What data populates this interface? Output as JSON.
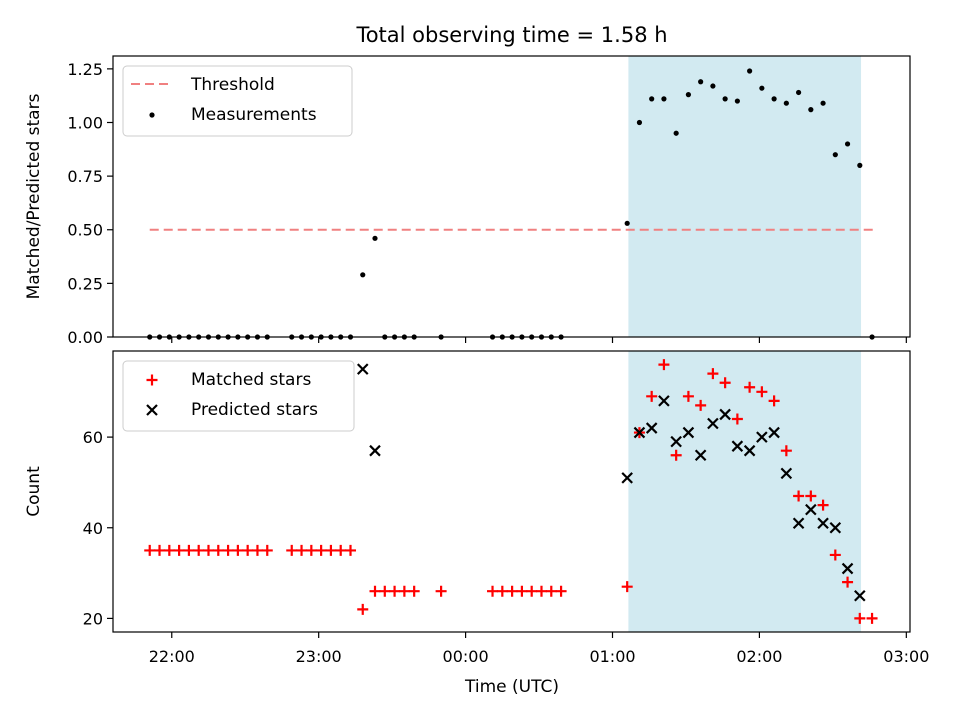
{
  "figure": {
    "title": "Total observing time = 1.58 h",
    "xlabel": "Time (UTC)",
    "x_ticks": [
      {
        "t": 1320,
        "label": "22:00"
      },
      {
        "t": 1380,
        "label": "23:00"
      },
      {
        "t": 1440,
        "label": "00:00"
      },
      {
        "t": 1500,
        "label": "01:00"
      },
      {
        "t": 1560,
        "label": "02:00"
      },
      {
        "t": 1620,
        "label": "03:00"
      }
    ],
    "xlim": [
      1296,
      1621.5
    ],
    "shaded_interval": {
      "start": 1506.5,
      "end": 1601.5,
      "color": "#add8e6"
    }
  },
  "chart_data": [
    {
      "type": "scatter",
      "ylabel": "Matched/Predicted stars",
      "ylim": [
        0,
        1.31
      ],
      "y_ticks": [
        {
          "v": 0,
          "label": "0.00"
        },
        {
          "v": 0.25,
          "label": "0.25"
        },
        {
          "v": 0.5,
          "label": "0.50"
        },
        {
          "v": 0.75,
          "label": "0.75"
        },
        {
          "v": 1.0,
          "label": "1.00"
        },
        {
          "v": 1.25,
          "label": "1.25"
        }
      ],
      "legend_position": "top-left",
      "threshold": {
        "name": "Threshold",
        "value": 0.5,
        "x_range": [
          1311,
          1407
        ],
        "x_range2": [
          1407,
          1607
        ],
        "color": "#f08080"
      },
      "series": [
        {
          "name": "Measurements",
          "color": "#000000",
          "marker": "dot",
          "points": [
            [
              1311,
              0
            ],
            [
              1315,
              0
            ],
            [
              1319,
              0
            ],
            [
              1323,
              0
            ],
            [
              1327,
              0
            ],
            [
              1331,
              0
            ],
            [
              1335,
              0
            ],
            [
              1339,
              0
            ],
            [
              1343,
              0
            ],
            [
              1347,
              0
            ],
            [
              1351,
              0
            ],
            [
              1355,
              0
            ],
            [
              1359,
              0
            ],
            [
              1369,
              0
            ],
            [
              1373,
              0
            ],
            [
              1377,
              0
            ],
            [
              1381,
              0
            ],
            [
              1385,
              0
            ],
            [
              1389,
              0
            ],
            [
              1393,
              0
            ],
            [
              1398,
              0.29
            ],
            [
              1403,
              0.46
            ],
            [
              1407,
              0
            ],
            [
              1411,
              0
            ],
            [
              1415,
              0
            ],
            [
              1419,
              0
            ],
            [
              1430,
              0
            ],
            [
              1451,
              0
            ],
            [
              1455,
              0
            ],
            [
              1459,
              0
            ],
            [
              1463,
              0
            ],
            [
              1467,
              0
            ],
            [
              1471,
              0
            ],
            [
              1475,
              0
            ],
            [
              1479,
              0
            ],
            [
              1506,
              0.53
            ],
            [
              1511,
              1.0
            ],
            [
              1516,
              1.11
            ],
            [
              1521,
              1.11
            ],
            [
              1526,
              0.95
            ],
            [
              1531,
              1.13
            ],
            [
              1536,
              1.19
            ],
            [
              1541,
              1.17
            ],
            [
              1546,
              1.11
            ],
            [
              1551,
              1.1
            ],
            [
              1556,
              1.24
            ],
            [
              1561,
              1.16
            ],
            [
              1566,
              1.11
            ],
            [
              1571,
              1.09
            ],
            [
              1576,
              1.14
            ],
            [
              1581,
              1.06
            ],
            [
              1586,
              1.09
            ],
            [
              1591,
              0.85
            ],
            [
              1596,
              0.9
            ],
            [
              1601,
              0.8
            ],
            [
              1606,
              0
            ]
          ]
        }
      ]
    },
    {
      "type": "scatter",
      "ylabel": "Count",
      "ylim": [
        17,
        79
      ],
      "y_ticks": [
        {
          "v": 20,
          "label": "20"
        },
        {
          "v": 40,
          "label": "40"
        },
        {
          "v": 60,
          "label": "60"
        }
      ],
      "legend_position": "top-left",
      "series": [
        {
          "name": "Matched stars",
          "color": "#ff0000",
          "marker": "plus",
          "points": [
            [
              1311,
              35
            ],
            [
              1315,
              35
            ],
            [
              1319,
              35
            ],
            [
              1323,
              35
            ],
            [
              1327,
              35
            ],
            [
              1331,
              35
            ],
            [
              1335,
              35
            ],
            [
              1339,
              35
            ],
            [
              1343,
              35
            ],
            [
              1347,
              35
            ],
            [
              1351,
              35
            ],
            [
              1355,
              35
            ],
            [
              1359,
              35
            ],
            [
              1369,
              35
            ],
            [
              1373,
              35
            ],
            [
              1377,
              35
            ],
            [
              1381,
              35
            ],
            [
              1385,
              35
            ],
            [
              1389,
              35
            ],
            [
              1393,
              35
            ],
            [
              1398,
              22
            ],
            [
              1403,
              26
            ],
            [
              1407,
              26
            ],
            [
              1411,
              26
            ],
            [
              1415,
              26
            ],
            [
              1419,
              26
            ],
            [
              1430,
              26
            ],
            [
              1451,
              26
            ],
            [
              1455,
              26
            ],
            [
              1459,
              26
            ],
            [
              1463,
              26
            ],
            [
              1467,
              26
            ],
            [
              1471,
              26
            ],
            [
              1475,
              26
            ],
            [
              1479,
              26
            ],
            [
              1506,
              27
            ],
            [
              1511,
              61
            ],
            [
              1516,
              69
            ],
            [
              1521,
              76
            ],
            [
              1526,
              56
            ],
            [
              1531,
              69
            ],
            [
              1536,
              67
            ],
            [
              1541,
              74
            ],
            [
              1546,
              72
            ],
            [
              1551,
              64
            ],
            [
              1556,
              71
            ],
            [
              1561,
              70
            ],
            [
              1566,
              68
            ],
            [
              1571,
              57
            ],
            [
              1576,
              47
            ],
            [
              1581,
              47
            ],
            [
              1586,
              45
            ],
            [
              1591,
              34
            ],
            [
              1596,
              28
            ],
            [
              1601,
              20
            ],
            [
              1606,
              20
            ]
          ]
        },
        {
          "name": "Predicted stars",
          "color": "#000000",
          "marker": "x",
          "points": [
            [
              1398,
              75
            ],
            [
              1403,
              57
            ],
            [
              1506,
              51
            ],
            [
              1511,
              61
            ],
            [
              1516,
              62
            ],
            [
              1521,
              68
            ],
            [
              1526,
              59
            ],
            [
              1531,
              61
            ],
            [
              1536,
              56
            ],
            [
              1541,
              63
            ],
            [
              1546,
              65
            ],
            [
              1551,
              58
            ],
            [
              1556,
              57
            ],
            [
              1561,
              60
            ],
            [
              1566,
              61
            ],
            [
              1571,
              52
            ],
            [
              1576,
              41
            ],
            [
              1581,
              44
            ],
            [
              1586,
              41
            ],
            [
              1591,
              40
            ],
            [
              1596,
              31
            ],
            [
              1601,
              25
            ]
          ]
        }
      ]
    }
  ]
}
